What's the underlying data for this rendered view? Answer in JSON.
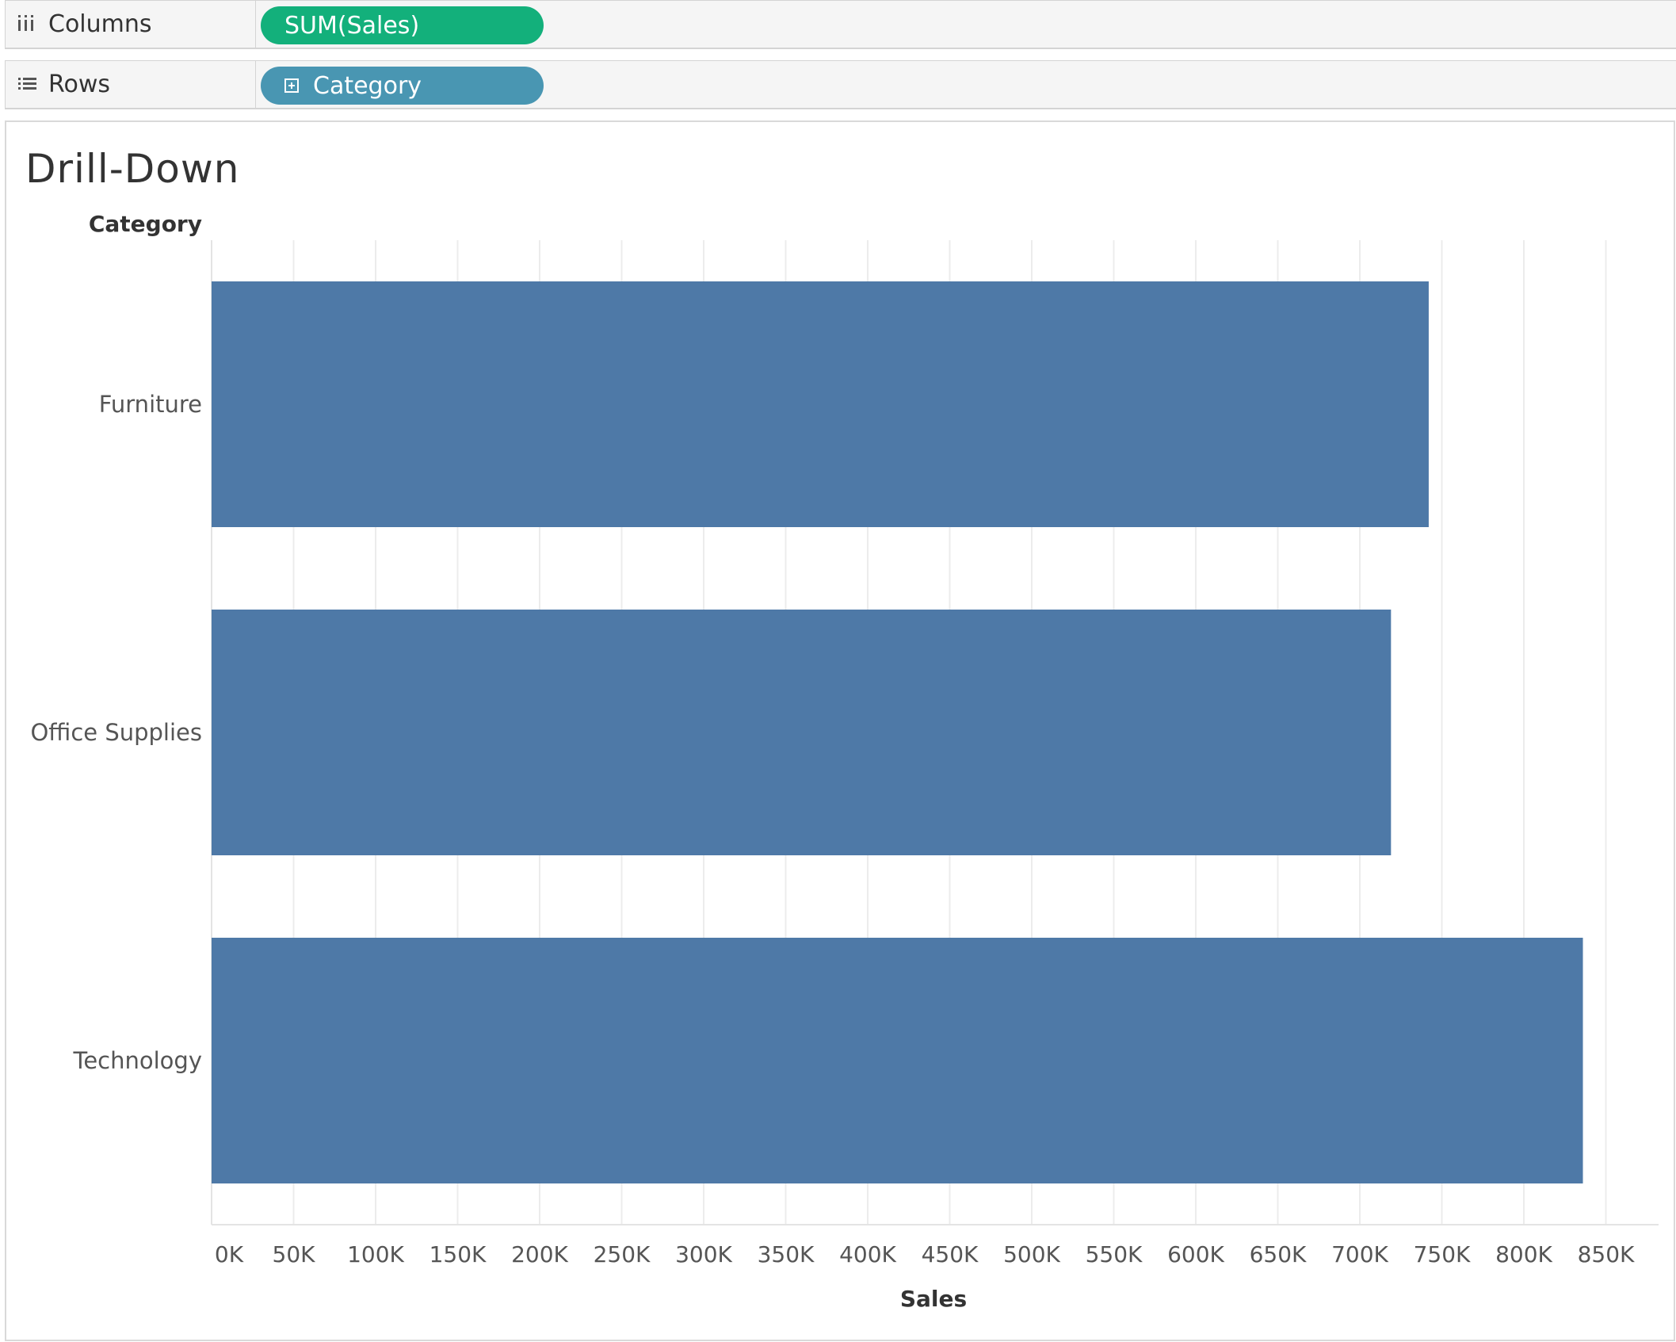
{
  "shelves": {
    "columns": {
      "label": "Columns",
      "pill": "SUM(Sales)",
      "pill_color": "#13b07b"
    },
    "rows": {
      "label": "Rows",
      "pill": "Category",
      "pill_color": "#4996b2"
    }
  },
  "view": {
    "title": "Drill-Down"
  },
  "chart_data": {
    "type": "bar",
    "orientation": "horizontal",
    "row_header": "Category",
    "categories": [
      "Furniture",
      "Office Supplies",
      "Technology"
    ],
    "values": [
      742000,
      719000,
      836000
    ],
    "xlabel": "Sales",
    "xlim": [
      0,
      880000
    ],
    "x_ticks": [
      "0K",
      "50K",
      "100K",
      "150K",
      "200K",
      "250K",
      "300K",
      "350K",
      "400K",
      "450K",
      "500K",
      "550K",
      "600K",
      "650K",
      "700K",
      "750K",
      "800K",
      "850K"
    ],
    "x_tick_values": [
      0,
      50000,
      100000,
      150000,
      200000,
      250000,
      300000,
      350000,
      400000,
      450000,
      500000,
      550000,
      600000,
      650000,
      700000,
      750000,
      800000,
      850000
    ],
    "bar_color": "#4e79a7",
    "grid": true,
    "gridline_color": "#ececec"
  }
}
